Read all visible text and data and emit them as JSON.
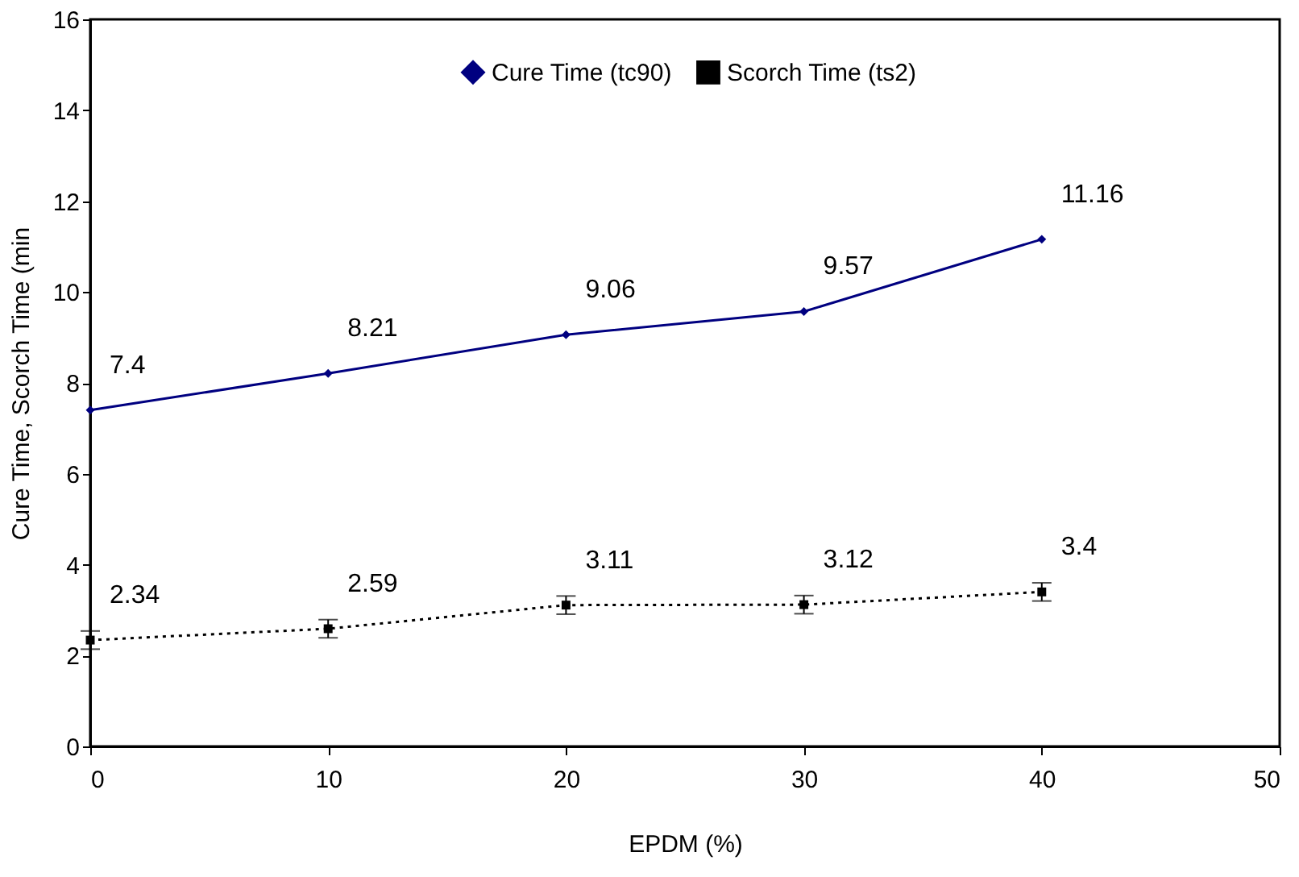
{
  "chart_data": {
    "type": "line",
    "xlabel": "EPDM (%)",
    "ylabel": "Cure Time, Scorch Time (min",
    "x": [
      0,
      10,
      20,
      30,
      40
    ],
    "series": [
      {
        "name": "Cure Time (tc90)",
        "color": "#000080",
        "values": [
          7.4,
          8.21,
          9.06,
          9.57,
          11.16
        ],
        "marker": "diamond",
        "line_style": "solid"
      },
      {
        "name": "Scorch Time (ts2)",
        "color": "#000000",
        "values": [
          2.34,
          2.59,
          3.11,
          3.12,
          3.4
        ],
        "errors": [
          0.2,
          0.2,
          0.2,
          0.2,
          0.2
        ],
        "marker": "square",
        "line_style": "dotted"
      }
    ],
    "xlim": [
      0,
      50
    ],
    "xticks": [
      0,
      10,
      20,
      30,
      40,
      50
    ],
    "ylim": [
      0,
      16
    ],
    "yticks": [
      0,
      2,
      4,
      6,
      8,
      10,
      12,
      14,
      16
    ],
    "data_labels": true,
    "grid": false,
    "legend": "top"
  }
}
